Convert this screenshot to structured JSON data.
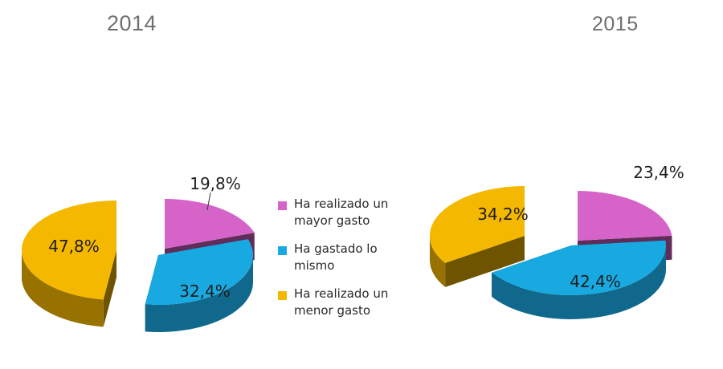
{
  "chart_data": [
    {
      "type": "pie",
      "title": "2014",
      "categories": [
        "Ha realizado  un mayor gasto",
        "Ha gastado lo mismo",
        "Ha realizado un menor gasto"
      ],
      "values": [
        19.8,
        32.4,
        47.8
      ],
      "labels": [
        "19,8%",
        "32,4%",
        "47,8%"
      ],
      "colors": [
        "#d663c7",
        "#19a9e1",
        "#f5b800"
      ],
      "legend": "right"
    },
    {
      "type": "pie",
      "title": "2015",
      "categories": [
        "Ha realizado  un mayor gasto",
        "Ha gastado lo mismo",
        "Ha realizado un menor gasto"
      ],
      "values": [
        23.4,
        42.4,
        34.2
      ],
      "labels": [
        "23,4%",
        "42,4%",
        "34,2%"
      ],
      "colors": [
        "#d663c7",
        "#19a9e1",
        "#f5b800"
      ]
    }
  ],
  "legend": [
    {
      "label": "Ha realizado  un mayor gasto",
      "color": "#d663c7"
    },
    {
      "label": "Ha gastado lo mismo",
      "color": "#19a9e1"
    },
    {
      "label": "Ha realizado un menor gasto",
      "color": "#f5b800"
    }
  ]
}
